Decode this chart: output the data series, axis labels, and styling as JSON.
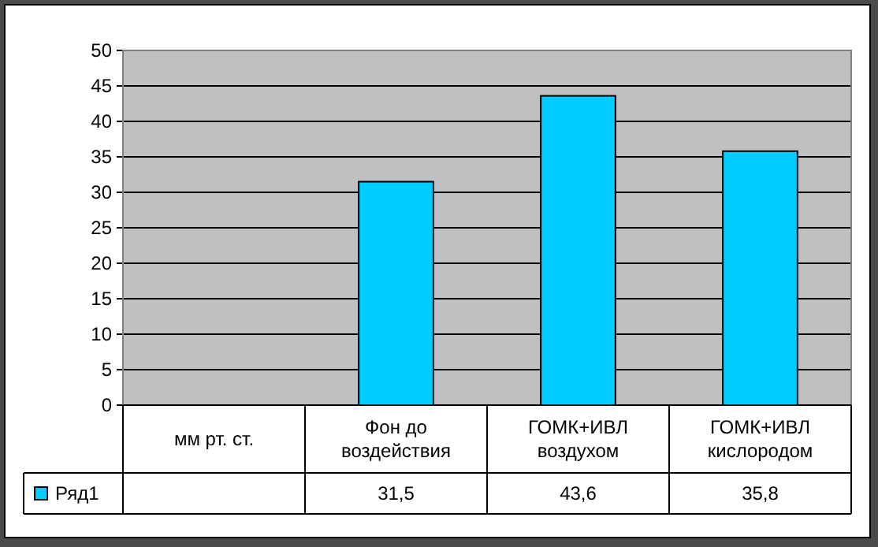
{
  "chart_data": {
    "type": "bar",
    "categories": [
      "мм рт. ст.",
      "Фон до воздействия",
      "ГОМК+ИВЛ воздухом",
      "ГОМК+ИВЛ кислородом"
    ],
    "series": [
      {
        "name": "Ряд1",
        "color": "#00ccff",
        "values": [
          null,
          31.5,
          43.6,
          35.8
        ],
        "value_labels": [
          null,
          "31,5",
          "43,6",
          "35,8"
        ]
      }
    ],
    "ylim": [
      0,
      50
    ],
    "yticks": [
      0,
      5,
      10,
      15,
      20,
      25,
      30,
      35,
      40,
      45,
      50
    ],
    "grid": "y",
    "legend": "bottom"
  }
}
